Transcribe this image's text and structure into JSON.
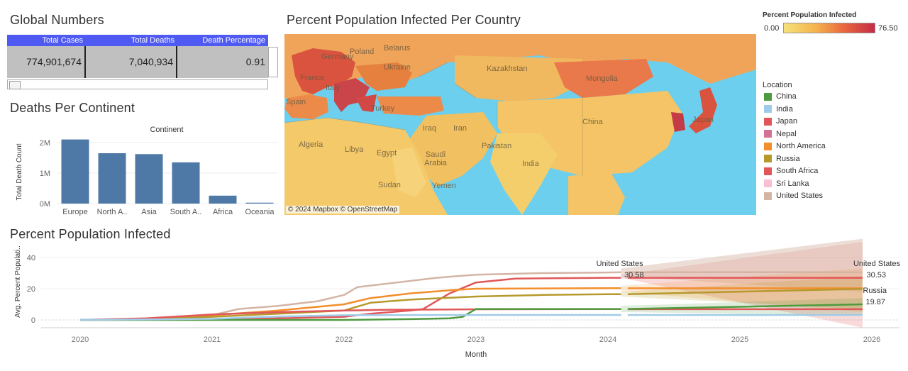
{
  "global_numbers": {
    "title": "Global Numbers",
    "headers": [
      "Total Cases",
      "Total Deaths",
      "Death Percentage"
    ],
    "values": [
      "774,901,674",
      "7,040,934",
      "0.91"
    ]
  },
  "map": {
    "title": "Percent Population Infected Per Country",
    "attribution": "© 2024 Mapbox © OpenStreetMap",
    "labels": [
      "Poland",
      "Belarus",
      "Germany",
      "Ukraine",
      "France",
      "Italy",
      "Spain",
      "Turkey",
      "Kazakhstan",
      "Mongolia",
      "China",
      "Japan",
      "Iraq",
      "Iran",
      "Algeria",
      "Libya",
      "Egypt",
      "Saudi Arabia",
      "Pakistan",
      "India",
      "Sudan",
      "Yemen"
    ]
  },
  "legend_gradient": {
    "title": "Percent Population Infected",
    "min": "0.00",
    "max": "76.50",
    "colors": [
      "#f6e27a",
      "#f4b34d",
      "#ea6a3f",
      "#c42a47"
    ]
  },
  "legend_location": {
    "title": "Location",
    "items": [
      {
        "name": "China",
        "color": "#4e9a3f"
      },
      {
        "name": "India",
        "color": "#a0cbe8"
      },
      {
        "name": "Japan",
        "color": "#e15759"
      },
      {
        "name": "Nepal",
        "color": "#d37295"
      },
      {
        "name": "North America",
        "color": "#f28e2b"
      },
      {
        "name": "Russia",
        "color": "#b6992d"
      },
      {
        "name": "South Africa",
        "color": "#e15759"
      },
      {
        "name": "Sri Lanka",
        "color": "#fabfd2"
      },
      {
        "name": "United States",
        "color": "#d4b5a5"
      }
    ]
  },
  "chart_data": [
    {
      "type": "bar",
      "title": "Deaths Per Continent",
      "header": "Continent",
      "categories": [
        "Europe",
        "North A..",
        "Asia",
        "South A..",
        "Africa",
        "Oceania"
      ],
      "values": [
        2100000,
        1650000,
        1620000,
        1350000,
        260000,
        30000
      ],
      "ylabel": "Total Death Count",
      "yticks": [
        {
          "v": 0,
          "label": "0M"
        },
        {
          "v": 1000000,
          "label": "1M"
        },
        {
          "v": 2000000,
          "label": "2M"
        }
      ],
      "ylim": [
        0,
        2300000
      ],
      "color": "#4e79a7"
    },
    {
      "type": "line",
      "title": "Percent Population Infected",
      "xlabel": "Month",
      "ylabel": "Avg. Percent Populati..",
      "xticks": [
        "2020",
        "2021",
        "2022",
        "2023",
        "2024",
        "2025",
        "2026"
      ],
      "xlim": [
        2020,
        2026
      ],
      "ylim": [
        -5,
        45
      ],
      "yticks": [
        0,
        20,
        40
      ],
      "forecast_start": 2024.1,
      "series": [
        {
          "name": "United States",
          "color": "#d4b5a5",
          "x": [
            2020,
            2020.5,
            2021,
            2021.2,
            2021.5,
            2021.8,
            2022,
            2022.1,
            2022.4,
            2022.7,
            2023,
            2023.5,
            2024,
            2024.1
          ],
          "y": [
            0,
            0.5,
            3,
            7,
            9,
            12,
            16,
            21,
            24,
            27,
            29,
            30,
            30.4,
            30.58
          ],
          "forecast": [
            30.58,
            30.53
          ]
        },
        {
          "name": "Japan",
          "color": "#e15759",
          "x": [
            2020,
            2021,
            2021.5,
            2022,
            2022.2,
            2022.5,
            2022.6,
            2022.8,
            2023,
            2023.3,
            2024,
            2024.1
          ],
          "y": [
            0,
            0.3,
            1,
            2,
            4,
            6,
            7,
            17,
            24,
            26.5,
            27,
            27
          ],
          "forecast": [
            27,
            27
          ]
        },
        {
          "name": "North America",
          "color": "#f28e2b",
          "x": [
            2020,
            2020.5,
            2021,
            2021.5,
            2022,
            2022.2,
            2022.5,
            2022.8,
            2023,
            2024,
            2024.1
          ],
          "y": [
            0,
            0.5,
            3,
            6,
            10,
            14,
            17,
            19,
            20,
            20.3,
            20.3
          ],
          "forecast": [
            20.3,
            20.3
          ]
        },
        {
          "name": "Russia",
          "color": "#b6992d",
          "x": [
            2020,
            2020.5,
            2021,
            2021.5,
            2022,
            2022.2,
            2022.5,
            2023,
            2023.5,
            2024,
            2024.1
          ],
          "y": [
            0,
            0.3,
            2,
            4,
            6,
            11,
            13,
            15,
            16,
            16.5,
            16.5
          ],
          "forecast": [
            16.5,
            19.87
          ]
        },
        {
          "name": "South Africa",
          "color": "#e15759",
          "x": [
            2020,
            2020.5,
            2021,
            2021.5,
            2022,
            2022.3,
            2023,
            2024,
            2024.1
          ],
          "y": [
            0,
            1,
            3.5,
            5,
            6,
            6.5,
            6.8,
            6.9,
            6.9
          ],
          "forecast": [
            6.9,
            6.9
          ]
        },
        {
          "name": "China",
          "color": "#4e9a3f",
          "x": [
            2020,
            2022,
            2022.5,
            2022.8,
            2022.9,
            2023,
            2024,
            2024.1
          ],
          "y": [
            0,
            0,
            0.5,
            1,
            2,
            7,
            7,
            7
          ],
          "forecast": [
            7,
            10
          ]
        },
        {
          "name": "India",
          "color": "#a0cbe8",
          "x": [
            2020,
            2021,
            2021.5,
            2022,
            2022.2,
            2023,
            2024,
            2024.1
          ],
          "y": [
            0,
            0.7,
            2.2,
            3,
            3.1,
            3.2,
            3.2,
            3.2
          ],
          "forecast": [
            3.2,
            3.2
          ]
        }
      ],
      "annotations": [
        {
          "series": "United States",
          "label": "United States",
          "value": "30.58"
        },
        {
          "series": "United States",
          "label": "United States",
          "value": "30.53"
        },
        {
          "series": "Russia",
          "label": "Russia",
          "value": "19.87"
        }
      ]
    }
  ]
}
